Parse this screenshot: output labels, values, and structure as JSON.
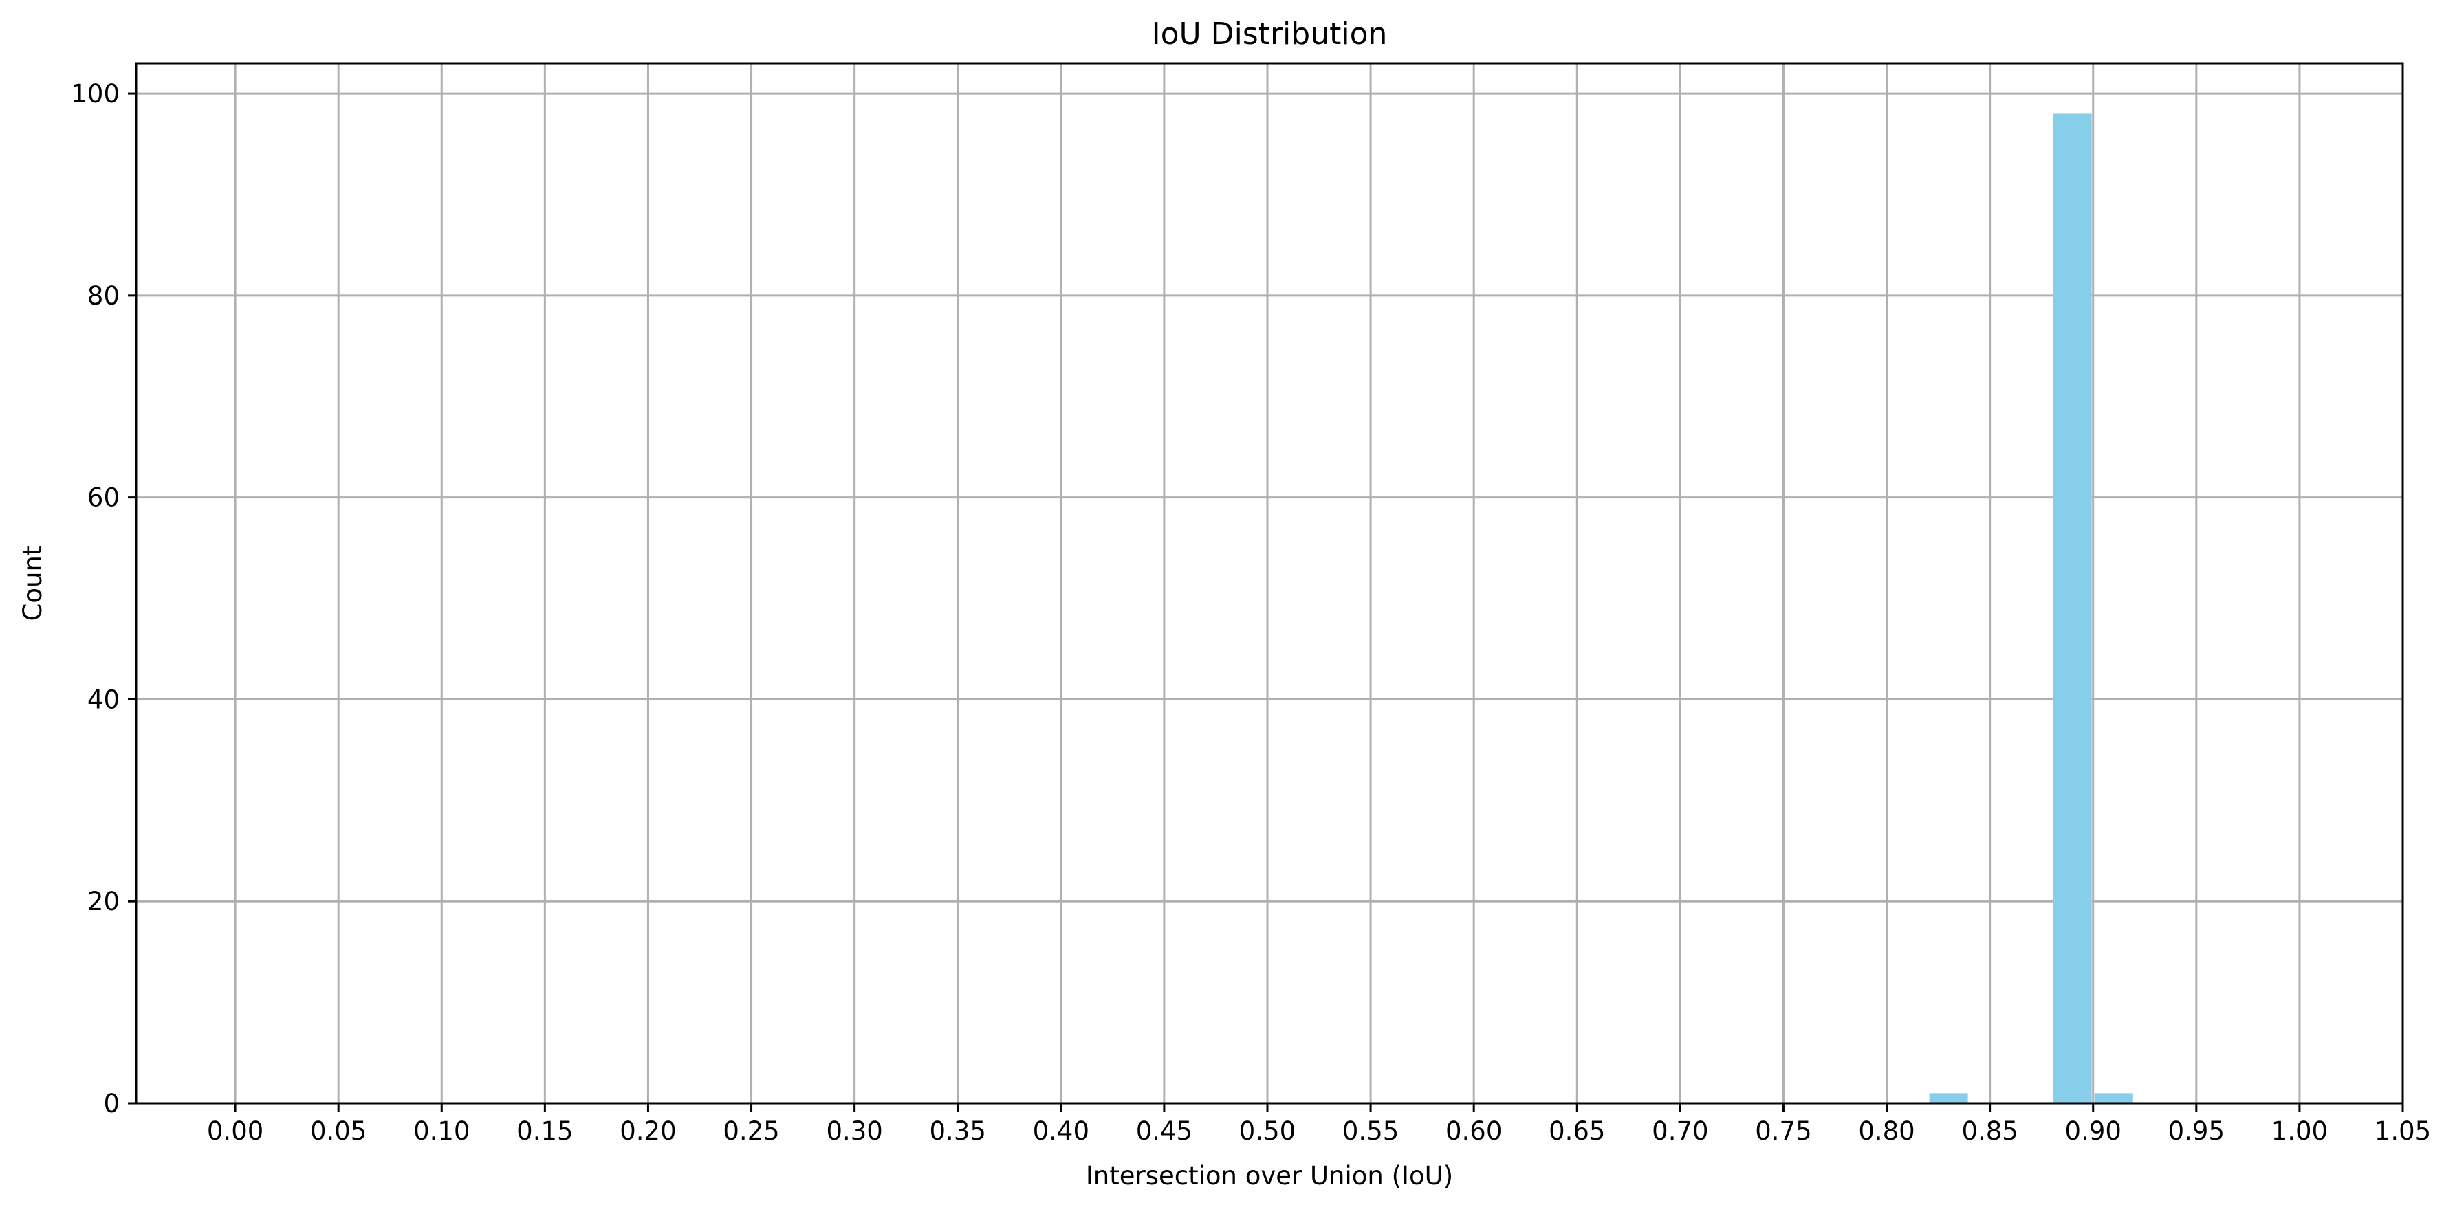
{
  "chart_data": {
    "type": "bar",
    "title": "IoU Distribution",
    "xlabel": "Intersection over Union (IoU)",
    "ylabel": "Count",
    "xlim": [
      -0.048,
      1.05
    ],
    "ylim": [
      0,
      103
    ],
    "xticks": [
      "0.00",
      "0.05",
      "0.10",
      "0.15",
      "0.20",
      "0.25",
      "0.30",
      "0.35",
      "0.40",
      "0.45",
      "0.50",
      "0.55",
      "0.60",
      "0.65",
      "0.70",
      "0.75",
      "0.80",
      "0.85",
      "0.90",
      "0.95",
      "1.00",
      "1.05"
    ],
    "yticks": [
      "0",
      "20",
      "40",
      "60",
      "80",
      "100"
    ],
    "bin_width": 0.02,
    "bars": [
      {
        "x0": 0.82,
        "x1": 0.84,
        "value": 1
      },
      {
        "x0": 0.88,
        "x1": 0.9,
        "value": 98
      },
      {
        "x0": 0.9,
        "x1": 0.92,
        "value": 1
      }
    ],
    "grid": true,
    "bar_color": "#87CEEB",
    "grid_color": "#b0b0b0"
  }
}
